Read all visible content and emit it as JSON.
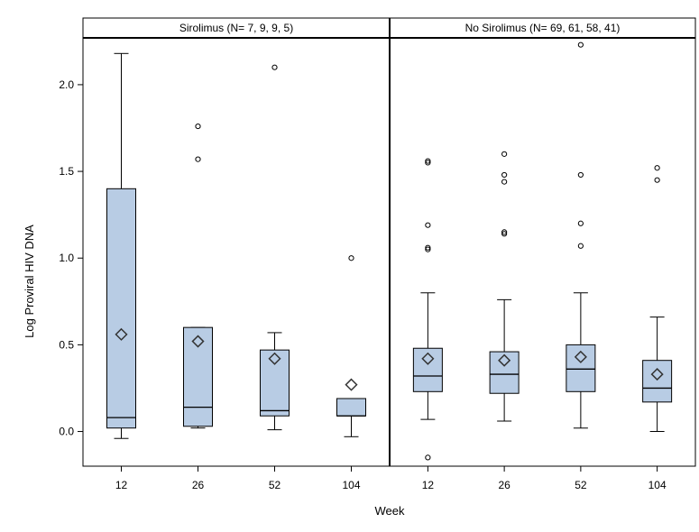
{
  "chart_data": {
    "type": "box",
    "xlabel": "Week",
    "ylabel": "Log Proviral HIV DNA",
    "ylim": [
      -0.2,
      2.27
    ],
    "yticks": [
      "0.0",
      "0.5",
      "1.0",
      "1.5",
      "2.0"
    ],
    "ytick_values": [
      0.0,
      0.5,
      1.0,
      1.5,
      2.0
    ],
    "categories": [
      "12",
      "26",
      "52",
      "104"
    ],
    "box_color": "#b8cce4",
    "grid": false,
    "panels": [
      {
        "title": "Sirolimus (N= 7, 9, 9, 5)",
        "boxes": [
          {
            "week": "12",
            "whisker_low": -0.04,
            "q1": 0.02,
            "median": 0.08,
            "q3": 1.4,
            "whisker_high": 2.18,
            "mean": 0.56,
            "outliers": []
          },
          {
            "week": "26",
            "whisker_low": 0.02,
            "q1": 0.03,
            "median": 0.14,
            "q3": 0.6,
            "whisker_high": 0.6,
            "mean": 0.52,
            "outliers": [
              1.76,
              1.57
            ]
          },
          {
            "week": "52",
            "whisker_low": 0.01,
            "q1": 0.09,
            "median": 0.12,
            "q3": 0.47,
            "whisker_high": 0.57,
            "mean": 0.42,
            "outliers": [
              2.1
            ]
          },
          {
            "week": "104",
            "whisker_low": -0.03,
            "q1": 0.09,
            "median": 0.09,
            "q3": 0.19,
            "whisker_high": 0.19,
            "mean": 0.27,
            "outliers": [
              1.0
            ]
          }
        ]
      },
      {
        "title": "No Sirolimus (N= 69, 61, 58, 41)",
        "boxes": [
          {
            "week": "12",
            "whisker_low": 0.07,
            "q1": 0.23,
            "median": 0.32,
            "q3": 0.48,
            "whisker_high": 0.8,
            "mean": 0.42,
            "outliers": [
              1.56,
              1.55,
              1.19,
              1.06,
              1.05,
              -0.15
            ]
          },
          {
            "week": "26",
            "whisker_low": 0.06,
            "q1": 0.22,
            "median": 0.33,
            "q3": 0.46,
            "whisker_high": 0.76,
            "mean": 0.41,
            "outliers": [
              1.6,
              1.48,
              1.44,
              1.15,
              1.14
            ]
          },
          {
            "week": "52",
            "whisker_low": 0.02,
            "q1": 0.23,
            "median": 0.36,
            "q3": 0.5,
            "whisker_high": 0.8,
            "mean": 0.43,
            "outliers": [
              2.23,
              1.48,
              1.2,
              1.07
            ]
          },
          {
            "week": "104",
            "whisker_low": 0.0,
            "q1": 0.17,
            "median": 0.25,
            "q3": 0.41,
            "whisker_high": 0.66,
            "mean": 0.33,
            "outliers": [
              1.52,
              1.45
            ]
          }
        ]
      }
    ]
  }
}
